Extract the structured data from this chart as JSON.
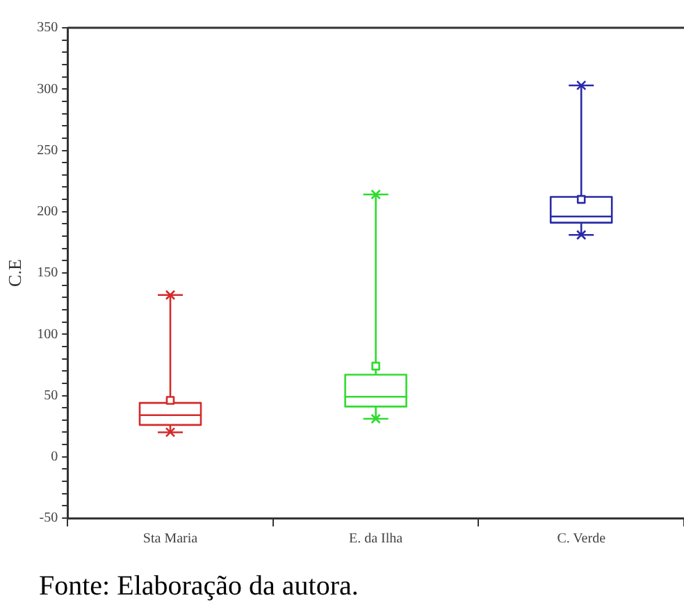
{
  "chart_data": {
    "type": "box",
    "ylabel": "C.E",
    "categories": [
      "Sta Maria",
      "E. da Ilha",
      "C. Verde"
    ],
    "colors": [
      "#d42a2a",
      "#2edc2e",
      "#2a2aa8"
    ],
    "boxes": [
      {
        "low": 20,
        "q1": 26,
        "median": 34,
        "q3": 44,
        "high": 132,
        "mean": 46,
        "outliers": [
          20,
          132
        ]
      },
      {
        "low": 31,
        "q1": 41,
        "median": 49,
        "q3": 67,
        "high": 214,
        "mean": 74,
        "outliers": [
          31,
          214
        ]
      },
      {
        "low": 181,
        "q1": 191,
        "median": 196,
        "q3": 212,
        "high": 303,
        "mean": 210,
        "outliers": [
          181,
          303
        ]
      }
    ],
    "ylim": [
      -50,
      350
    ],
    "yticks": [
      -50,
      {
        "value": -40,
        "label": null
      },
      {
        "value": -30,
        "label": null
      },
      {
        "value": -20,
        "label": null
      },
      {
        "value": -10,
        "label": null
      },
      0,
      {
        "value": 10,
        "label": null
      },
      {
        "value": 20,
        "label": null
      },
      {
        "value": 30,
        "label": null
      },
      {
        "value": 40,
        "label": null
      },
      50,
      {
        "value": 60,
        "label": null
      },
      {
        "value": 70,
        "label": null
      },
      {
        "value": 80,
        "label": null
      },
      {
        "value": 90,
        "label": null
      },
      100,
      {
        "value": 110,
        "label": null
      },
      {
        "value": 120,
        "label": null
      },
      {
        "value": 130,
        "label": null
      },
      {
        "value": 140,
        "label": null
      },
      150,
      {
        "value": 160,
        "label": null
      },
      {
        "value": 170,
        "label": null
      },
      {
        "value": 180,
        "label": null
      },
      {
        "value": 190,
        "label": null
      },
      200,
      {
        "value": 210,
        "label": null
      },
      {
        "value": 220,
        "label": null
      },
      {
        "value": 230,
        "label": null
      },
      {
        "value": 240,
        "label": null
      },
      250,
      {
        "value": 260,
        "label": null
      },
      {
        "value": 270,
        "label": null
      },
      {
        "value": 280,
        "label": null
      },
      {
        "value": 290,
        "label": null
      },
      300,
      {
        "value": 310,
        "label": null
      },
      {
        "value": 320,
        "label": null
      },
      {
        "value": 330,
        "label": null
      },
      {
        "value": 340,
        "label": null
      },
      350
    ],
    "grid": false,
    "legend": false,
    "annotations": [
      "Fonte: Elaboração da autora."
    ]
  }
}
